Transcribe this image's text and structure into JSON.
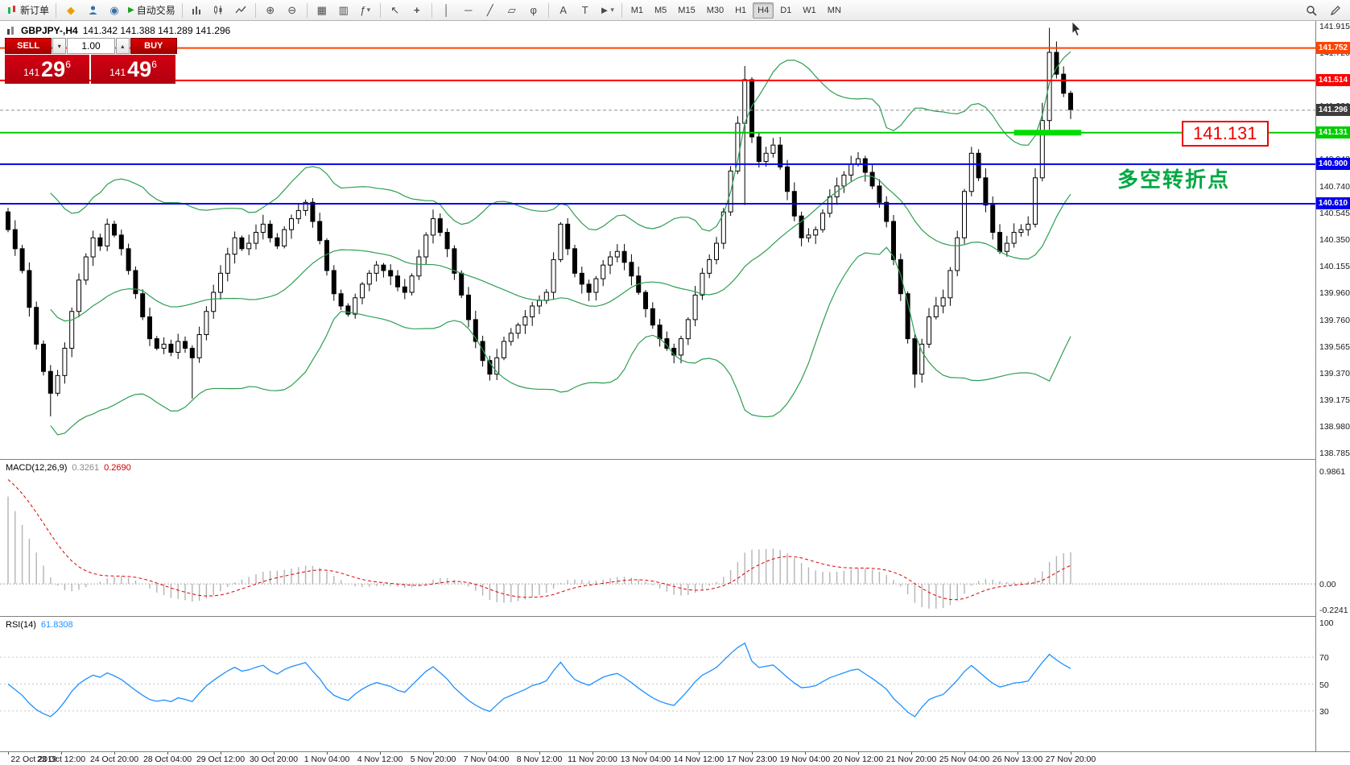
{
  "toolbar": {
    "new_order_label": "新订单",
    "auto_trading_label": "自动交易",
    "timeframes": [
      "M1",
      "M5",
      "M15",
      "M30",
      "H1",
      "H4",
      "D1",
      "W1",
      "MN"
    ],
    "active_timeframe": "H4"
  },
  "icons": {
    "metaquotes": "◆",
    "community": "◉",
    "auto_play": "▶",
    "zoom_in": "⊕",
    "zoom_out": "⊖",
    "grid": "▦",
    "windows": "▥",
    "indicators": "ƒ",
    "cursor": "↖",
    "crosshair": "+",
    "vline": "│",
    "hline": "─",
    "trendline": "╱",
    "channel": "▱",
    "fibonacci": "φ",
    "text": "A",
    "label": "T",
    "arrow": "►",
    "caret_down": "▾",
    "caret_up": "▴"
  },
  "quote_bar": {
    "symbol": "GBPJPY-,H4",
    "ohlc": "141.342 141.388 141.289 141.296"
  },
  "trade_panel": {
    "sell_label": "SELL",
    "buy_label": "BUY",
    "volume": "1.00",
    "sell_price": {
      "small": "141",
      "big": "29",
      "sup": "6"
    },
    "buy_price": {
      "small": "141",
      "big": "49",
      "sup": "6"
    }
  },
  "indicators": {
    "macd_label": "MACD(12,26,9)",
    "macd_main": "0.3261",
    "macd_signal": "0.2690",
    "rsi_label": "RSI(14)",
    "rsi_value": "61.8308"
  },
  "annotations": {
    "price_label": "141.131",
    "turning_point": "多空转折点",
    "turning_point_color": "#00a843",
    "price_label_color": "#ee0000"
  },
  "chart_data": {
    "type": "candlestick",
    "symbol": "GBPJPY",
    "timeframe": "H4",
    "ylim": [
      138.785,
      141.915
    ],
    "open_first": 140.55,
    "closes": [
      140.42,
      140.28,
      140.12,
      139.85,
      139.58,
      139.38,
      139.22,
      139.35,
      139.55,
      139.82,
      140.05,
      140.22,
      140.36,
      140.3,
      140.46,
      140.38,
      140.28,
      140.12,
      139.95,
      139.78,
      139.62,
      139.55,
      139.58,
      139.52,
      139.6,
      139.55,
      139.48,
      139.65,
      139.82,
      139.96,
      140.1,
      140.24,
      140.36,
      140.28,
      140.32,
      140.4,
      140.46,
      140.36,
      140.3,
      140.42,
      140.5,
      140.56,
      140.62,
      140.48,
      140.34,
      140.12,
      139.95,
      139.86,
      139.8,
      139.92,
      140.02,
      140.1,
      140.16,
      140.12,
      140.08,
      140.0,
      139.96,
      140.08,
      140.22,
      140.38,
      140.5,
      140.4,
      140.28,
      140.1,
      139.94,
      139.76,
      139.6,
      139.46,
      139.36,
      139.48,
      139.6,
      139.66,
      139.72,
      139.78,
      139.86,
      139.9,
      139.96,
      140.2,
      140.46,
      140.28,
      140.1,
      140.02,
      139.96,
      140.06,
      140.16,
      140.22,
      140.26,
      140.18,
      140.08,
      139.96,
      139.84,
      139.72,
      139.62,
      139.55,
      139.5,
      139.62,
      139.76,
      139.94,
      140.1,
      140.2,
      140.32,
      140.55,
      140.85,
      141.2,
      141.52,
      141.1,
      140.92,
      140.98,
      141.04,
      140.88,
      140.7,
      140.52,
      140.36,
      140.38,
      140.42,
      140.54,
      140.66,
      140.74,
      140.82,
      140.9,
      140.94,
      140.84,
      140.74,
      140.62,
      140.48,
      140.2,
      139.95,
      139.62,
      139.36,
      139.58,
      139.78,
      139.86,
      139.92,
      140.12,
      140.36,
      140.7,
      140.98,
      140.8,
      140.6,
      140.4,
      140.26,
      140.32,
      140.4,
      140.42,
      140.46,
      140.8,
      141.22,
      141.72,
      141.56,
      141.42,
      141.3
    ],
    "wick_overrides": {
      "6": [
        null,
        139.05
      ],
      "26": [
        null,
        139.18
      ],
      "104": [
        141.62,
        140.6
      ],
      "128": [
        null,
        139.26
      ],
      "146": [
        141.35,
        null
      ],
      "147": [
        141.9,
        null
      ],
      "148": [
        141.8,
        null
      ]
    },
    "bollinger": {
      "period": 20,
      "deviation": 2,
      "color": "#2e9e53"
    },
    "levels": [
      {
        "price": 141.752,
        "tag": "141.752",
        "color": "#ff4400",
        "width": 2,
        "style": "solid"
      },
      {
        "price": 141.514,
        "tag": "141.514",
        "color": "#ff0000",
        "width": 2,
        "style": "solid"
      },
      {
        "price": 141.296,
        "tag": "141.296",
        "color": "#909090",
        "tag_color": "#3c3c3c",
        "width": 1,
        "style": "dash"
      },
      {
        "price": 141.131,
        "tag": "141.131",
        "color": "#00cc00",
        "width": 2,
        "style": "solid"
      },
      {
        "price": 140.9,
        "tag": "140.900",
        "color": "#0000ee",
        "width": 2,
        "style": "solid"
      },
      {
        "price": 140.61,
        "tag": "140.610",
        "color": "#0000ee",
        "width": 2,
        "style": "solid"
      }
    ],
    "highlight_segment": {
      "price": 141.131,
      "from_bar": 142,
      "to_bar": 151.5,
      "color": "#00dd00"
    },
    "price_axis_ticks": [
      "141.915",
      "141.720",
      "141.525",
      "141.330",
      "141.135",
      "140.940",
      "140.740",
      "140.545",
      "140.350",
      "140.155",
      "139.960",
      "139.760",
      "139.565",
      "139.370",
      "139.175",
      "138.980",
      "138.785"
    ],
    "macd": {
      "params": [
        12,
        26,
        9
      ],
      "axis": [
        "0.9861",
        "0.00",
        "-0.2241"
      ],
      "histogram_color": "#b4b4b4",
      "signal_color": "#dd0000"
    },
    "rsi": {
      "period": 14,
      "axis": [
        "100",
        "70",
        "50",
        "30"
      ],
      "levels": [
        70,
        50,
        30
      ],
      "line_color": "#1e90ff"
    },
    "time_labels": [
      "22 Oct 2019",
      "23 Oct 12:00",
      "24 Oct 20:00",
      "28 Oct 04:00",
      "29 Oct 12:00",
      "30 Oct 20:00",
      "1 Nov 04:00",
      "4 Nov 12:00",
      "5 Nov 20:00",
      "7 Nov 04:00",
      "8 Nov 12:00",
      "11 Nov 20:00",
      "13 Nov 04:00",
      "14 Nov 12:00",
      "17 Nov 23:00",
      "19 Nov 04:00",
      "20 Nov 12:00",
      "21 Nov 20:00",
      "25 Nov 04:00",
      "26 Nov 13:00",
      "27 Nov 20:00"
    ]
  }
}
